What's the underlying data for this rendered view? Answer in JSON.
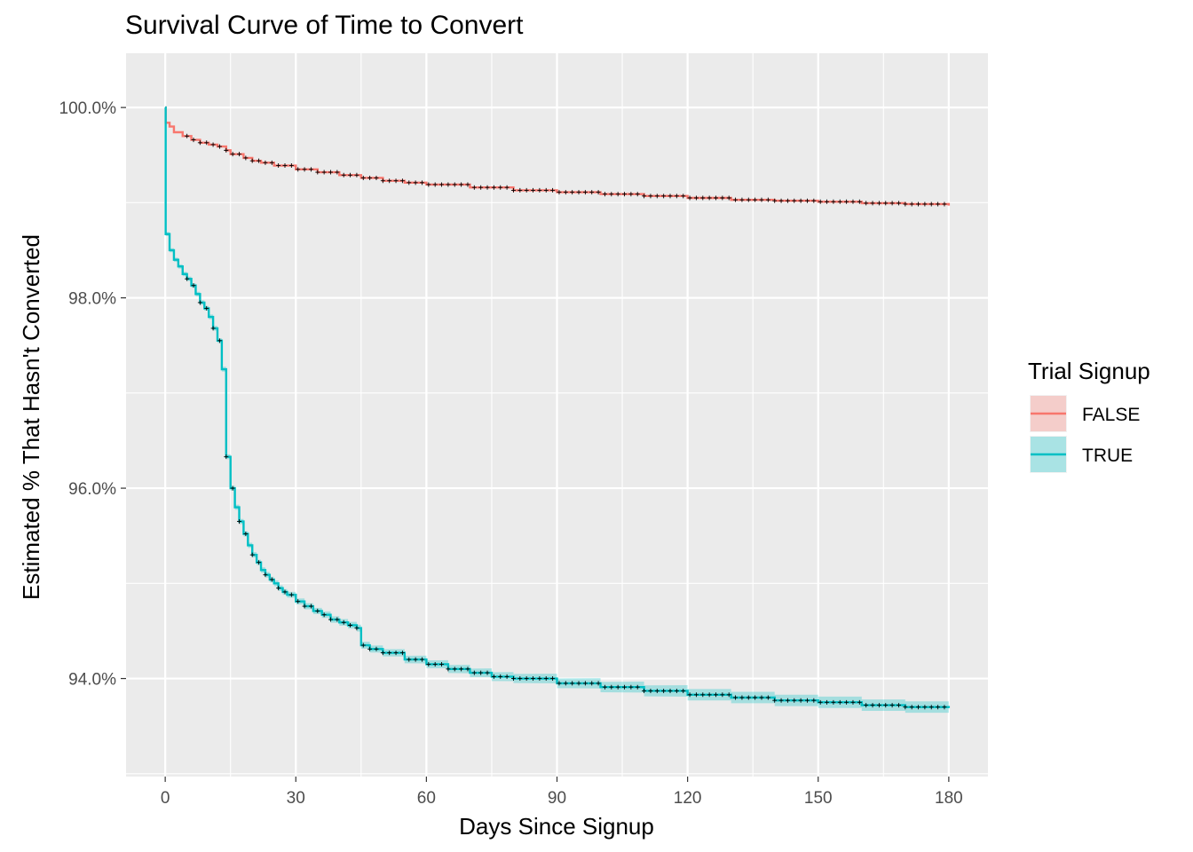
{
  "chart_data": {
    "type": "line",
    "title": "Survival Curve of Time to Convert",
    "xlabel": "Days Since Signup",
    "ylabel": "Estimated % That Hasn't Converted",
    "xlim": [
      -9,
      189
    ],
    "ylim": [
      92.97,
      100.57
    ],
    "x_ticks": [
      0,
      30,
      60,
      90,
      120,
      150,
      180
    ],
    "x_tick_labels": [
      "0",
      "30",
      "60",
      "90",
      "120",
      "150",
      "180"
    ],
    "y_ticks": [
      94,
      96,
      98,
      100
    ],
    "y_tick_labels": [
      "94.0%",
      "96.0%",
      "98.0%",
      "100.0%"
    ],
    "grid": true,
    "legend": {
      "title": "Trial Signup",
      "position": "right",
      "entries": [
        "FALSE",
        "TRUE"
      ]
    },
    "series": [
      {
        "name": "FALSE",
        "color": "#F8766D",
        "band_color": "#F8766D",
        "points": [
          [
            0,
            100.0
          ],
          [
            0.1,
            99.84
          ],
          [
            1,
            99.8
          ],
          [
            2,
            99.74
          ],
          [
            4,
            99.7
          ],
          [
            6,
            99.66
          ],
          [
            8,
            99.63
          ],
          [
            10,
            99.61
          ],
          [
            12,
            99.59
          ],
          [
            14,
            99.55
          ],
          [
            15,
            99.51
          ],
          [
            18,
            99.47
          ],
          [
            20,
            99.44
          ],
          [
            22,
            99.42
          ],
          [
            25,
            99.39
          ],
          [
            30,
            99.35
          ],
          [
            35,
            99.32
          ],
          [
            40,
            99.29
          ],
          [
            45,
            99.26
          ],
          [
            50,
            99.23
          ],
          [
            55,
            99.21
          ],
          [
            60,
            99.19
          ],
          [
            70,
            99.16
          ],
          [
            80,
            99.13
          ],
          [
            90,
            99.11
          ],
          [
            100,
            99.09
          ],
          [
            110,
            99.07
          ],
          [
            120,
            99.05
          ],
          [
            130,
            99.03
          ],
          [
            140,
            99.02
          ],
          [
            150,
            99.01
          ],
          [
            160,
            98.995
          ],
          [
            170,
            98.985
          ],
          [
            180,
            98.97
          ]
        ],
        "band_halfwidth": 0.012
      },
      {
        "name": "TRUE",
        "color": "#00BFC4",
        "band_color": "#00BFC4",
        "points": [
          [
            0,
            100.0
          ],
          [
            0.1,
            98.67
          ],
          [
            1,
            98.5
          ],
          [
            2,
            98.4
          ],
          [
            3,
            98.33
          ],
          [
            4,
            98.25
          ],
          [
            5,
            98.2
          ],
          [
            6,
            98.13
          ],
          [
            7,
            98.04
          ],
          [
            8,
            97.95
          ],
          [
            9,
            97.89
          ],
          [
            10,
            97.8
          ],
          [
            11,
            97.68
          ],
          [
            12,
            97.55
          ],
          [
            13,
            97.25
          ],
          [
            14,
            96.33
          ],
          [
            15,
            96.0
          ],
          [
            16,
            95.8
          ],
          [
            17,
            95.65
          ],
          [
            18,
            95.52
          ],
          [
            19,
            95.4
          ],
          [
            20,
            95.3
          ],
          [
            21,
            95.22
          ],
          [
            22,
            95.14
          ],
          [
            23,
            95.09
          ],
          [
            24,
            95.04
          ],
          [
            25,
            95.0
          ],
          [
            26,
            94.95
          ],
          [
            27,
            94.91
          ],
          [
            28,
            94.88
          ],
          [
            30,
            94.81
          ],
          [
            32,
            94.76
          ],
          [
            34,
            94.71
          ],
          [
            36,
            94.67
          ],
          [
            38,
            94.62
          ],
          [
            40,
            94.59
          ],
          [
            42,
            94.56
          ],
          [
            44,
            94.53
          ],
          [
            45,
            94.35
          ],
          [
            47,
            94.31
          ],
          [
            50,
            94.27
          ],
          [
            55,
            94.2
          ],
          [
            60,
            94.15
          ],
          [
            65,
            94.1
          ],
          [
            70,
            94.06
          ],
          [
            75,
            94.02
          ],
          [
            80,
            94.0
          ],
          [
            90,
            93.95
          ],
          [
            100,
            93.91
          ],
          [
            110,
            93.87
          ],
          [
            120,
            93.83
          ],
          [
            130,
            93.8
          ],
          [
            140,
            93.77
          ],
          [
            150,
            93.75
          ],
          [
            160,
            93.72
          ],
          [
            170,
            93.7
          ],
          [
            180,
            93.69
          ]
        ],
        "band_halfwidth": 0.06
      }
    ]
  }
}
